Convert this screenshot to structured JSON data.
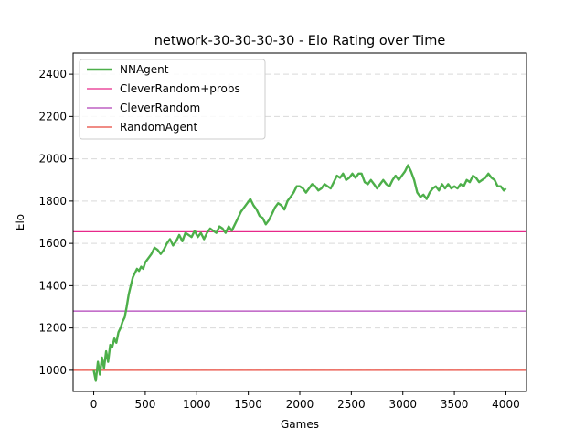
{
  "chart_data": {
    "type": "line",
    "title": "network-30-30-30-30 - Elo Rating over Time",
    "xlabel": "Games",
    "ylabel": "Elo",
    "xlim": [
      -200,
      4200
    ],
    "ylim": [
      900,
      2500
    ],
    "xticks": [
      0,
      500,
      1000,
      1500,
      2000,
      2500,
      3000,
      3500,
      4000
    ],
    "yticks": [
      1000,
      1200,
      1400,
      1600,
      1800,
      2000,
      2200,
      2400
    ],
    "grid": {
      "y": true,
      "x": false,
      "style": "dashed"
    },
    "legend": {
      "position": "top-left"
    },
    "series": [
      {
        "name": "NNAgent",
        "color": "#4daf4a",
        "points": [
          [
            0,
            1000
          ],
          [
            20,
            950
          ],
          [
            40,
            1040
          ],
          [
            60,
            980
          ],
          [
            80,
            1060
          ],
          [
            100,
            1010
          ],
          [
            120,
            1090
          ],
          [
            140,
            1040
          ],
          [
            160,
            1120
          ],
          [
            180,
            1110
          ],
          [
            200,
            1150
          ],
          [
            220,
            1130
          ],
          [
            240,
            1180
          ],
          [
            260,
            1200
          ],
          [
            280,
            1230
          ],
          [
            300,
            1250
          ],
          [
            320,
            1300
          ],
          [
            340,
            1360
          ],
          [
            360,
            1400
          ],
          [
            380,
            1440
          ],
          [
            400,
            1460
          ],
          [
            420,
            1480
          ],
          [
            440,
            1470
          ],
          [
            460,
            1490
          ],
          [
            480,
            1480
          ],
          [
            500,
            1510
          ],
          [
            530,
            1530
          ],
          [
            560,
            1550
          ],
          [
            590,
            1580
          ],
          [
            620,
            1570
          ],
          [
            650,
            1550
          ],
          [
            680,
            1570
          ],
          [
            710,
            1600
          ],
          [
            740,
            1620
          ],
          [
            770,
            1590
          ],
          [
            800,
            1610
          ],
          [
            830,
            1640
          ],
          [
            860,
            1610
          ],
          [
            890,
            1650
          ],
          [
            920,
            1640
          ],
          [
            950,
            1630
          ],
          [
            980,
            1660
          ],
          [
            1010,
            1630
          ],
          [
            1040,
            1650
          ],
          [
            1070,
            1620
          ],
          [
            1100,
            1650
          ],
          [
            1130,
            1670
          ],
          [
            1160,
            1660
          ],
          [
            1190,
            1650
          ],
          [
            1220,
            1680
          ],
          [
            1250,
            1670
          ],
          [
            1280,
            1650
          ],
          [
            1310,
            1680
          ],
          [
            1340,
            1660
          ],
          [
            1370,
            1690
          ],
          [
            1400,
            1720
          ],
          [
            1430,
            1750
          ],
          [
            1460,
            1770
          ],
          [
            1490,
            1790
          ],
          [
            1520,
            1810
          ],
          [
            1550,
            1780
          ],
          [
            1580,
            1760
          ],
          [
            1610,
            1730
          ],
          [
            1640,
            1720
          ],
          [
            1670,
            1690
          ],
          [
            1700,
            1710
          ],
          [
            1730,
            1740
          ],
          [
            1760,
            1770
          ],
          [
            1790,
            1790
          ],
          [
            1820,
            1780
          ],
          [
            1850,
            1760
          ],
          [
            1880,
            1800
          ],
          [
            1910,
            1820
          ],
          [
            1940,
            1840
          ],
          [
            1970,
            1870
          ],
          [
            2000,
            1870
          ],
          [
            2030,
            1860
          ],
          [
            2060,
            1840
          ],
          [
            2090,
            1860
          ],
          [
            2120,
            1880
          ],
          [
            2150,
            1870
          ],
          [
            2180,
            1850
          ],
          [
            2210,
            1860
          ],
          [
            2240,
            1880
          ],
          [
            2270,
            1870
          ],
          [
            2300,
            1860
          ],
          [
            2330,
            1890
          ],
          [
            2360,
            1920
          ],
          [
            2390,
            1910
          ],
          [
            2420,
            1930
          ],
          [
            2450,
            1900
          ],
          [
            2480,
            1910
          ],
          [
            2510,
            1930
          ],
          [
            2540,
            1910
          ],
          [
            2570,
            1930
          ],
          [
            2600,
            1930
          ],
          [
            2630,
            1890
          ],
          [
            2660,
            1880
          ],
          [
            2690,
            1900
          ],
          [
            2720,
            1880
          ],
          [
            2750,
            1860
          ],
          [
            2780,
            1880
          ],
          [
            2810,
            1900
          ],
          [
            2840,
            1880
          ],
          [
            2870,
            1870
          ],
          [
            2900,
            1900
          ],
          [
            2930,
            1920
          ],
          [
            2960,
            1900
          ],
          [
            2990,
            1920
          ],
          [
            3020,
            1940
          ],
          [
            3050,
            1970
          ],
          [
            3080,
            1940
          ],
          [
            3110,
            1900
          ],
          [
            3140,
            1840
          ],
          [
            3170,
            1820
          ],
          [
            3200,
            1830
          ],
          [
            3230,
            1810
          ],
          [
            3260,
            1840
          ],
          [
            3290,
            1860
          ],
          [
            3320,
            1870
          ],
          [
            3350,
            1850
          ],
          [
            3380,
            1880
          ],
          [
            3410,
            1860
          ],
          [
            3440,
            1880
          ],
          [
            3470,
            1860
          ],
          [
            3500,
            1870
          ],
          [
            3530,
            1860
          ],
          [
            3560,
            1880
          ],
          [
            3590,
            1870
          ],
          [
            3620,
            1900
          ],
          [
            3650,
            1890
          ],
          [
            3680,
            1920
          ],
          [
            3710,
            1910
          ],
          [
            3740,
            1890
          ],
          [
            3770,
            1900
          ],
          [
            3800,
            1910
          ],
          [
            3830,
            1930
          ],
          [
            3860,
            1910
          ],
          [
            3890,
            1900
          ],
          [
            3920,
            1870
          ],
          [
            3950,
            1870
          ],
          [
            3980,
            1850
          ],
          [
            4000,
            1860
          ]
        ]
      },
      {
        "name": "CleverRandom+probs",
        "color": "#e7298a",
        "value": 1655
      },
      {
        "name": "CleverRandom",
        "color": "#b040b8",
        "value": 1280
      },
      {
        "name": "RandomAgent",
        "color": "#e8483c",
        "value": 1000
      }
    ]
  }
}
